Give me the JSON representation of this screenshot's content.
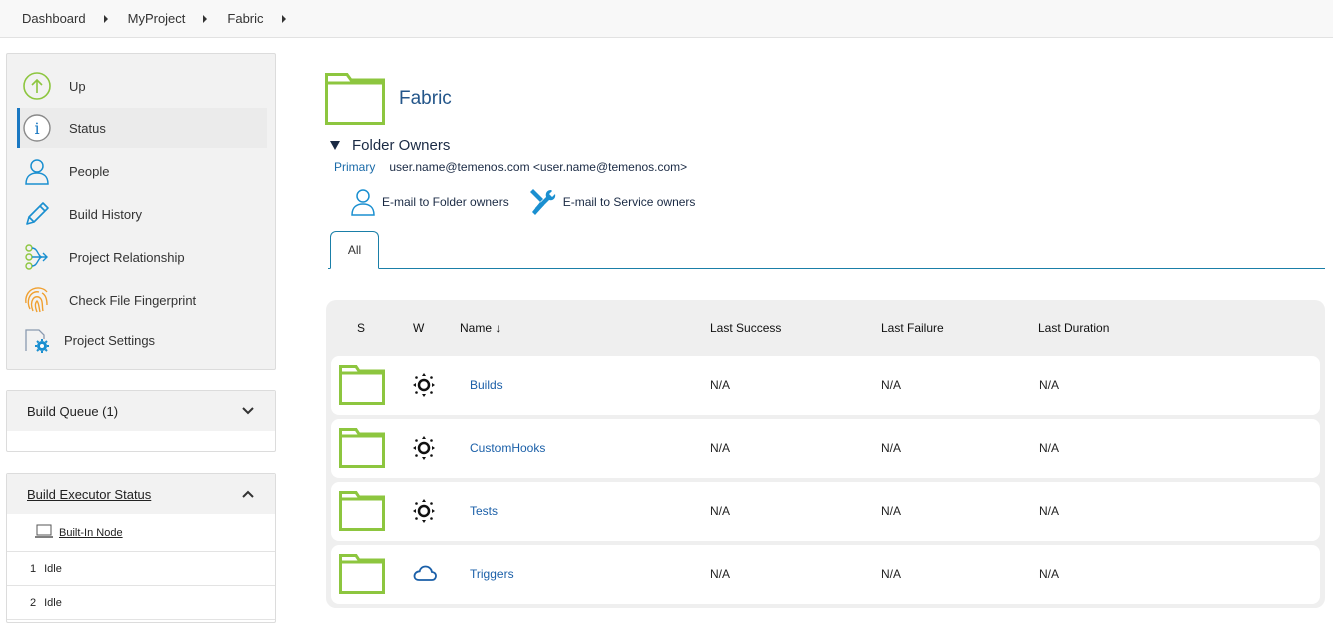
{
  "breadcrumb": [
    "Dashboard",
    "MyProject",
    "Fabric"
  ],
  "sidebar": {
    "tasks": [
      {
        "label": "Up",
        "icon": "up-arrow-icon"
      },
      {
        "label": "Status",
        "icon": "info-icon"
      },
      {
        "label": "People",
        "icon": "person-icon"
      },
      {
        "label": "Build History",
        "icon": "pencil-icon"
      },
      {
        "label": "Project Relationship",
        "icon": "relationship-icon"
      },
      {
        "label": "Check File Fingerprint",
        "icon": "fingerprint-icon"
      },
      {
        "label": "Project Settings",
        "icon": "settings-icon"
      }
    ],
    "build_queue": {
      "title": "Build Queue (1)"
    },
    "executor": {
      "title": "Build Executor Status",
      "node": "Built-In Node",
      "rows": [
        {
          "num": "1",
          "status": "Idle"
        },
        {
          "num": "2",
          "status": "Idle"
        }
      ]
    }
  },
  "main": {
    "title": "Fabric",
    "owners_heading": "Folder Owners",
    "primary_label": "Primary",
    "primary_value": "user.name@temenos.com <user.name@temenos.com>",
    "email_folder": "E-mail to Folder owners",
    "email_service": "E-mail to Service owners",
    "tab": "All"
  },
  "table": {
    "headers": {
      "s": "S",
      "w": "W",
      "name": "Name ↓",
      "last_success": "Last Success",
      "last_failure": "Last Failure",
      "last_duration": "Last Duration"
    },
    "rows": [
      {
        "name": "Builds",
        "weather": "sun-icon",
        "last_success": "N/A",
        "last_failure": "N/A",
        "last_duration": "N/A"
      },
      {
        "name": "CustomHooks",
        "weather": "sun-icon",
        "last_success": "N/A",
        "last_failure": "N/A",
        "last_duration": "N/A"
      },
      {
        "name": "Tests",
        "weather": "sun-icon",
        "last_success": "N/A",
        "last_failure": "N/A",
        "last_duration": "N/A"
      },
      {
        "name": "Triggers",
        "weather": "cloud-icon",
        "last_success": "N/A",
        "last_failure": "N/A",
        "last_duration": "N/A"
      }
    ]
  },
  "colors": {
    "folder": "#8dc63f",
    "link": "#1a5fa8",
    "accent": "#1a7fa8"
  }
}
